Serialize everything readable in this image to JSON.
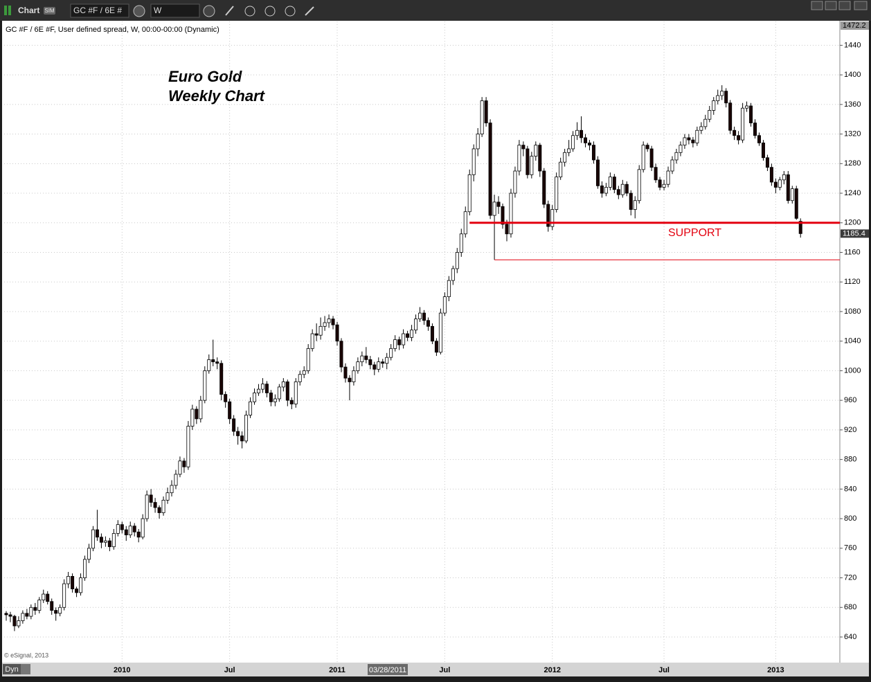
{
  "toolbar": {
    "app": "Chart",
    "badge": "SIM",
    "symbol": "GC #F / 6E #",
    "interval": "W"
  },
  "header": "GC #F / 6E #F, User defined spread, W, 00:00-00:00 (Dynamic)",
  "copyright": "© eSignal, 2013",
  "footer_button": "Dyn",
  "cursor_label": "03/28/2011",
  "chart_data": {
    "type": "candlestick",
    "title": "Euro Gold",
    "subtitle": "Weekly Chart",
    "up_color": "#ffffff",
    "down_color": "#1a0606",
    "grid": true,
    "ylim": [
      606.3,
      1472.2
    ],
    "yticks": [
      640,
      680,
      720,
      760,
      800,
      840,
      880,
      920,
      960,
      1000,
      1040,
      1080,
      1120,
      1160,
      1200,
      1240,
      1280,
      1320,
      1360,
      1400,
      1440
    ],
    "xlim": [
      -0.5,
      201.5
    ],
    "xticks": [
      {
        "value": 28,
        "label": "2010"
      },
      {
        "value": 54,
        "label": "Jul"
      },
      {
        "value": 80,
        "label": "2011"
      },
      {
        "value": 106,
        "label": "Jul"
      },
      {
        "value": 132,
        "label": "2012"
      },
      {
        "value": 159,
        "label": "Jul"
      },
      {
        "value": 186,
        "label": "2013"
      }
    ],
    "annotations": [
      {
        "text": "SUPPORT",
        "value": 1200,
        "color": "#e3000f"
      },
      {
        "value": 1150,
        "color": "#e3000f"
      }
    ],
    "ohlc": [
      [
        672,
        675,
        662,
        670
      ],
      [
        670,
        674,
        660,
        668
      ],
      [
        668,
        670,
        648,
        655
      ],
      [
        655,
        668,
        652,
        662
      ],
      [
        662,
        676,
        658,
        672
      ],
      [
        672,
        678,
        664,
        668
      ],
      [
        668,
        684,
        664,
        680
      ],
      [
        680,
        686,
        670,
        676
      ],
      [
        676,
        694,
        672,
        690
      ],
      [
        690,
        704,
        686,
        698
      ],
      [
        698,
        702,
        684,
        688
      ],
      [
        688,
        692,
        670,
        676
      ],
      [
        676,
        680,
        662,
        672
      ],
      [
        672,
        684,
        668,
        680
      ],
      [
        680,
        718,
        676,
        712
      ],
      [
        712,
        728,
        706,
        722
      ],
      [
        722,
        726,
        700,
        705
      ],
      [
        705,
        708,
        694,
        700
      ],
      [
        700,
        726,
        696,
        720
      ],
      [
        720,
        750,
        716,
        745
      ],
      [
        745,
        766,
        740,
        760
      ],
      [
        760,
        790,
        756,
        785
      ],
      [
        785,
        812,
        770,
        775
      ],
      [
        775,
        780,
        760,
        768
      ],
      [
        768,
        776,
        762,
        770
      ],
      [
        770,
        774,
        756,
        762
      ],
      [
        762,
        786,
        758,
        780
      ],
      [
        780,
        798,
        776,
        792
      ],
      [
        792,
        796,
        780,
        785
      ],
      [
        785,
        790,
        770,
        778
      ],
      [
        778,
        796,
        774,
        790
      ],
      [
        790,
        794,
        776,
        782
      ],
      [
        782,
        786,
        768,
        775
      ],
      [
        775,
        806,
        772,
        800
      ],
      [
        800,
        838,
        796,
        832
      ],
      [
        832,
        840,
        816,
        822
      ],
      [
        822,
        828,
        808,
        815
      ],
      [
        815,
        818,
        800,
        808
      ],
      [
        808,
        830,
        804,
        825
      ],
      [
        825,
        842,
        820,
        835
      ],
      [
        835,
        852,
        830,
        845
      ],
      [
        845,
        866,
        840,
        860
      ],
      [
        860,
        884,
        856,
        878
      ],
      [
        878,
        882,
        862,
        870
      ],
      [
        870,
        932,
        866,
        925
      ],
      [
        925,
        954,
        920,
        948
      ],
      [
        948,
        952,
        928,
        935
      ],
      [
        935,
        966,
        930,
        960
      ],
      [
        960,
        1006,
        956,
        1000
      ],
      [
        1000,
        1022,
        996,
        1015
      ],
      [
        1015,
        1042,
        1006,
        1012
      ],
      [
        1012,
        1018,
        1002,
        1010
      ],
      [
        1010,
        1014,
        960,
        968
      ],
      [
        968,
        972,
        950,
        958
      ],
      [
        958,
        962,
        928,
        935
      ],
      [
        935,
        940,
        912,
        918
      ],
      [
        918,
        924,
        900,
        912
      ],
      [
        912,
        918,
        895,
        905
      ],
      [
        905,
        946,
        902,
        940
      ],
      [
        940,
        964,
        936,
        958
      ],
      [
        958,
        976,
        954,
        970
      ],
      [
        970,
        982,
        966,
        975
      ],
      [
        975,
        990,
        970,
        982
      ],
      [
        982,
        986,
        964,
        970
      ],
      [
        970,
        974,
        952,
        958
      ],
      [
        958,
        968,
        952,
        962
      ],
      [
        962,
        982,
        958,
        978
      ],
      [
        978,
        990,
        972,
        985
      ],
      [
        985,
        988,
        952,
        960
      ],
      [
        960,
        964,
        948,
        955
      ],
      [
        955,
        990,
        950,
        985
      ],
      [
        985,
        1000,
        980,
        995
      ],
      [
        995,
        1006,
        990,
        1000
      ],
      [
        1000,
        1036,
        996,
        1030
      ],
      [
        1030,
        1056,
        1026,
        1050
      ],
      [
        1050,
        1064,
        1040,
        1048
      ],
      [
        1048,
        1072,
        1042,
        1060
      ],
      [
        1060,
        1074,
        1054,
        1065
      ],
      [
        1065,
        1076,
        1058,
        1070
      ],
      [
        1070,
        1074,
        1056,
        1062
      ],
      [
        1062,
        1066,
        1034,
        1040
      ],
      [
        1040,
        1044,
        998,
        1005
      ],
      [
        1005,
        1010,
        984,
        990
      ],
      [
        990,
        994,
        960,
        985
      ],
      [
        985,
        1006,
        980,
        1000
      ],
      [
        1000,
        1018,
        996,
        1012
      ],
      [
        1012,
        1026,
        1006,
        1020
      ],
      [
        1020,
        1032,
        1010,
        1015
      ],
      [
        1015,
        1020,
        1002,
        1008
      ],
      [
        1008,
        1012,
        994,
        1002
      ],
      [
        1002,
        1018,
        998,
        1012
      ],
      [
        1012,
        1016,
        1004,
        1010
      ],
      [
        1010,
        1024,
        1002,
        1018
      ],
      [
        1018,
        1036,
        1014,
        1030
      ],
      [
        1030,
        1048,
        1026,
        1042
      ],
      [
        1042,
        1046,
        1028,
        1035
      ],
      [
        1035,
        1056,
        1030,
        1050
      ],
      [
        1050,
        1054,
        1040,
        1045
      ],
      [
        1045,
        1062,
        1040,
        1055
      ],
      [
        1055,
        1076,
        1050,
        1070
      ],
      [
        1070,
        1086,
        1066,
        1078
      ],
      [
        1078,
        1082,
        1062,
        1068
      ],
      [
        1068,
        1072,
        1054,
        1060
      ],
      [
        1060,
        1064,
        1036,
        1040
      ],
      [
        1040,
        1044,
        1020,
        1025
      ],
      [
        1025,
        1084,
        1022,
        1078
      ],
      [
        1078,
        1106,
        1074,
        1100
      ],
      [
        1100,
        1128,
        1094,
        1122
      ],
      [
        1122,
        1142,
        1116,
        1138
      ],
      [
        1138,
        1166,
        1132,
        1160
      ],
      [
        1160,
        1192,
        1154,
        1185
      ],
      [
        1185,
        1222,
        1180,
        1215
      ],
      [
        1215,
        1272,
        1210,
        1265
      ],
      [
        1265,
        1306,
        1256,
        1300
      ],
      [
        1300,
        1328,
        1290,
        1320
      ],
      [
        1320,
        1370,
        1316,
        1365
      ],
      [
        1365,
        1370,
        1330,
        1335
      ],
      [
        1335,
        1340,
        1205,
        1210
      ],
      [
        1210,
        1238,
        1150,
        1228
      ],
      [
        1228,
        1236,
        1212,
        1222
      ],
      [
        1222,
        1226,
        1192,
        1198
      ],
      [
        1198,
        1204,
        1175,
        1185
      ],
      [
        1185,
        1246,
        1180,
        1240
      ],
      [
        1240,
        1276,
        1234,
        1270
      ],
      [
        1270,
        1312,
        1264,
        1305
      ],
      [
        1305,
        1310,
        1290,
        1300
      ],
      [
        1300,
        1304,
        1260,
        1265
      ],
      [
        1265,
        1296,
        1260,
        1290
      ],
      [
        1290,
        1310,
        1284,
        1305
      ],
      [
        1305,
        1308,
        1262,
        1270
      ],
      [
        1270,
        1274,
        1220,
        1225
      ],
      [
        1225,
        1230,
        1188,
        1195
      ],
      [
        1195,
        1224,
        1190,
        1218
      ],
      [
        1218,
        1268,
        1214,
        1262
      ],
      [
        1262,
        1288,
        1258,
        1282
      ],
      [
        1282,
        1300,
        1276,
        1295
      ],
      [
        1295,
        1312,
        1290,
        1300
      ],
      [
        1300,
        1324,
        1296,
        1318
      ],
      [
        1318,
        1336,
        1312,
        1325
      ],
      [
        1325,
        1344,
        1308,
        1315
      ],
      [
        1315,
        1320,
        1302,
        1308
      ],
      [
        1308,
        1312,
        1298,
        1305
      ],
      [
        1305,
        1310,
        1280,
        1285
      ],
      [
        1285,
        1290,
        1246,
        1250
      ],
      [
        1250,
        1256,
        1234,
        1240
      ],
      [
        1240,
        1254,
        1236,
        1248
      ],
      [
        1248,
        1268,
        1244,
        1262
      ],
      [
        1262,
        1266,
        1240,
        1245
      ],
      [
        1245,
        1250,
        1232,
        1238
      ],
      [
        1238,
        1258,
        1234,
        1252
      ],
      [
        1252,
        1256,
        1236,
        1240
      ],
      [
        1240,
        1244,
        1210,
        1218
      ],
      [
        1218,
        1236,
        1206,
        1230
      ],
      [
        1230,
        1278,
        1226,
        1272
      ],
      [
        1272,
        1310,
        1268,
        1305
      ],
      [
        1305,
        1308,
        1296,
        1300
      ],
      [
        1300,
        1304,
        1270,
        1275
      ],
      [
        1275,
        1280,
        1254,
        1258
      ],
      [
        1258,
        1262,
        1244,
        1248
      ],
      [
        1248,
        1258,
        1244,
        1252
      ],
      [
        1252,
        1276,
        1248,
        1270
      ],
      [
        1270,
        1290,
        1266,
        1285
      ],
      [
        1285,
        1300,
        1280,
        1295
      ],
      [
        1295,
        1310,
        1290,
        1305
      ],
      [
        1305,
        1320,
        1300,
        1315
      ],
      [
        1315,
        1320,
        1306,
        1312
      ],
      [
        1312,
        1316,
        1302,
        1308
      ],
      [
        1308,
        1330,
        1304,
        1325
      ],
      [
        1325,
        1336,
        1320,
        1330
      ],
      [
        1330,
        1346,
        1326,
        1340
      ],
      [
        1340,
        1358,
        1336,
        1352
      ],
      [
        1352,
        1370,
        1346,
        1365
      ],
      [
        1365,
        1380,
        1360,
        1372
      ],
      [
        1372,
        1386,
        1366,
        1378
      ],
      [
        1378,
        1382,
        1356,
        1362
      ],
      [
        1362,
        1366,
        1320,
        1325
      ],
      [
        1325,
        1330,
        1312,
        1318
      ],
      [
        1318,
        1324,
        1306,
        1312
      ],
      [
        1312,
        1362,
        1308,
        1355
      ],
      [
        1355,
        1364,
        1350,
        1358
      ],
      [
        1358,
        1362,
        1330,
        1335
      ],
      [
        1335,
        1340,
        1314,
        1318
      ],
      [
        1318,
        1322,
        1304,
        1308
      ],
      [
        1308,
        1312,
        1284,
        1288
      ],
      [
        1288,
        1292,
        1270,
        1275
      ],
      [
        1275,
        1280,
        1250,
        1255
      ],
      [
        1255,
        1260,
        1240,
        1248
      ],
      [
        1248,
        1262,
        1244,
        1258
      ],
      [
        1258,
        1270,
        1252,
        1265
      ],
      [
        1265,
        1270,
        1226,
        1230
      ],
      [
        1230,
        1250,
        1226,
        1246
      ],
      [
        1246,
        1250,
        1204,
        1206
      ],
      [
        1202,
        1206,
        1180,
        1185.4
      ]
    ]
  }
}
